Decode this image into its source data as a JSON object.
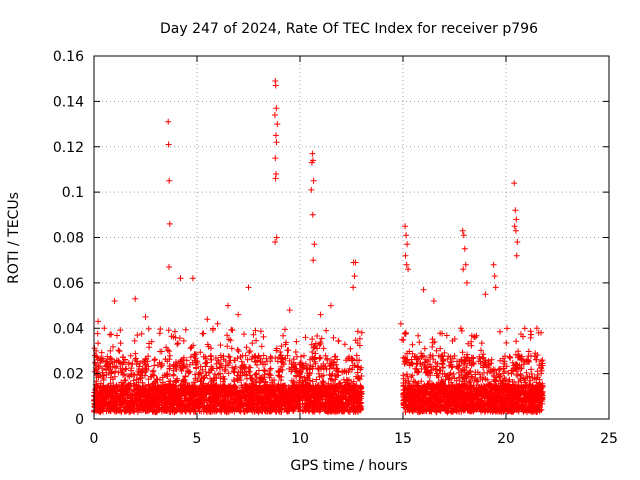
{
  "chart_data": {
    "type": "scatter",
    "title": "Day 247 of 2024, Rate Of TEC Index for receiver p796",
    "xlabel": "GPS time / hours",
    "ylabel": "ROTI / TECUs",
    "xlim": [
      0,
      25
    ],
    "ylim": [
      0,
      0.16
    ],
    "xticks": [
      0,
      5,
      10,
      15,
      20,
      25
    ],
    "xtick_labels": [
      "0",
      "5",
      "10",
      "15",
      "20",
      "25"
    ],
    "yticks": [
      0,
      0.02,
      0.04,
      0.06,
      0.08,
      0.1,
      0.12,
      0.14,
      0.16
    ],
    "ytick_labels": [
      "0",
      "0.02",
      "0.04",
      "0.06",
      "0.08",
      "0.1",
      "0.12",
      "0.14",
      "0.16"
    ],
    "grid": true,
    "marker": "plus",
    "color": "#ff0000",
    "series": [
      {
        "name": "ROTI",
        "x": [
          3.6,
          3.62,
          3.65,
          3.68,
          3.64,
          8.8,
          8.82,
          8.85,
          8.78,
          8.9,
          8.83,
          8.86,
          8.8,
          8.84,
          8.81,
          8.87,
          8.79,
          10.6,
          10.63,
          10.58,
          10.66,
          10.55,
          10.62,
          10.7,
          10.64,
          12.6,
          12.7,
          12.65,
          12.58,
          15.1,
          15.15,
          15.2,
          15.12,
          15.18,
          15.25,
          17.9,
          17.95,
          18.0,
          18.05,
          17.92,
          18.1,
          19.4,
          19.45,
          19.5,
          20.4,
          20.45,
          20.5,
          20.42,
          20.48,
          20.55,
          20.52,
          4.8,
          4.2,
          6.5,
          7.5,
          2.0,
          1.0,
          11.5,
          16.0,
          16.5,
          9.5,
          5.5,
          0.2,
          0.5,
          2.5,
          6.0,
          7.0,
          11.0,
          13.0,
          14.9,
          21.5,
          21.7,
          19.0,
          14.95,
          0.1,
          0.05
        ],
        "y": [
          0.131,
          0.121,
          0.105,
          0.086,
          0.067,
          0.149,
          0.147,
          0.137,
          0.134,
          0.13,
          0.125,
          0.122,
          0.115,
          0.108,
          0.106,
          0.08,
          0.078,
          0.117,
          0.114,
          0.113,
          0.105,
          0.101,
          0.09,
          0.077,
          0.07,
          0.069,
          0.069,
          0.063,
          0.058,
          0.085,
          0.081,
          0.077,
          0.072,
          0.068,
          0.066,
          0.083,
          0.081,
          0.075,
          0.068,
          0.066,
          0.06,
          0.068,
          0.063,
          0.058,
          0.104,
          0.092,
          0.088,
          0.085,
          0.083,
          0.078,
          0.072,
          0.062,
          0.062,
          0.05,
          0.058,
          0.053,
          0.052,
          0.05,
          0.057,
          0.052,
          0.048,
          0.044,
          0.043,
          0.04,
          0.045,
          0.042,
          0.046,
          0.046,
          0.038,
          0.042,
          0.04,
          0.038,
          0.055,
          0.035,
          0.03,
          0.028
        ],
        "dense_segments": [
          {
            "x_range": [
              0.0,
              13.0
            ],
            "y_range": [
              0.003,
              0.04
            ],
            "count": 3400
          },
          {
            "x_range": [
              15.0,
              21.8
            ],
            "y_range": [
              0.003,
              0.04
            ],
            "count": 2000
          }
        ]
      }
    ]
  }
}
